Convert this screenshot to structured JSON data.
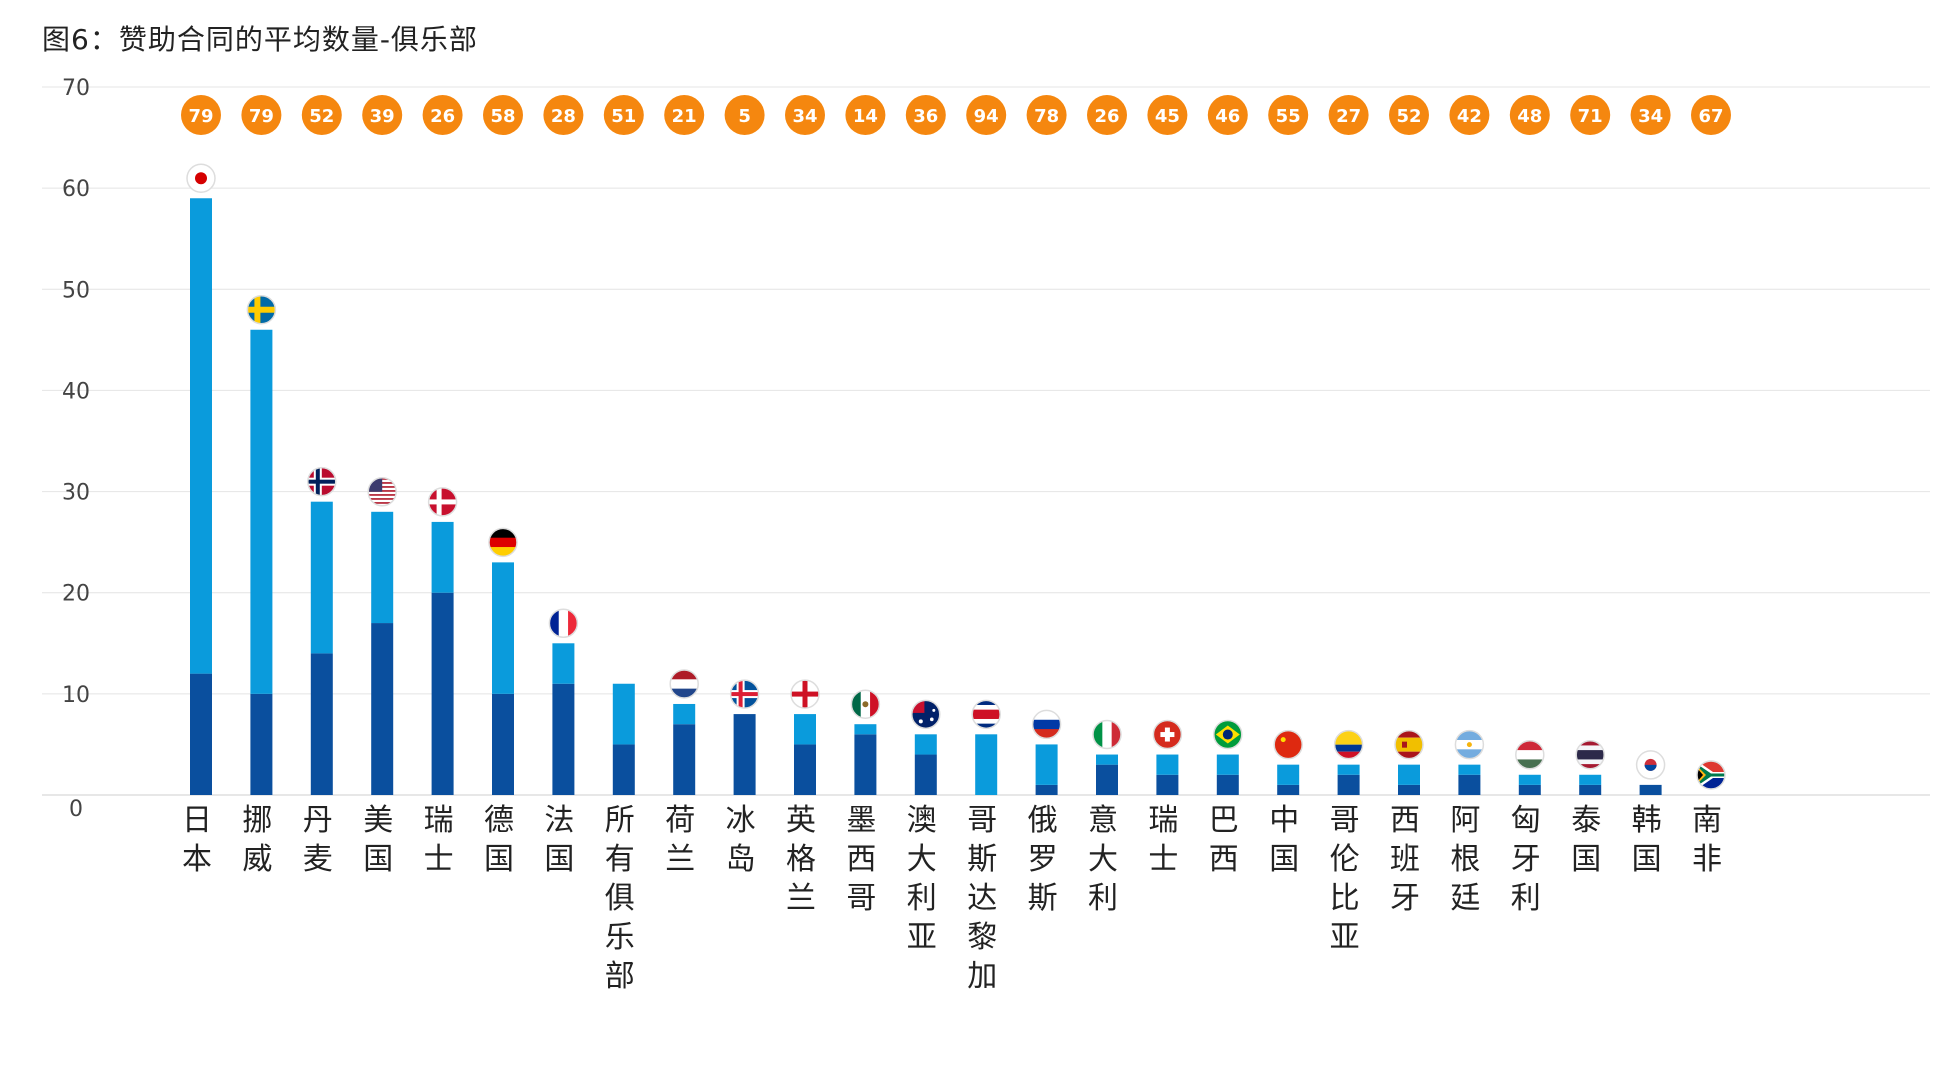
{
  "title": "图6：赞助合同的平均数量-俱乐部",
  "chart_data": {
    "type": "bar",
    "stacked": true,
    "title": "图6：赞助合同的平均数量-俱乐部",
    "xlabel": "",
    "ylabel": "",
    "ylim": [
      0,
      70
    ],
    "yticks": [
      0,
      10,
      20,
      30,
      40,
      50,
      60,
      70
    ],
    "grid": true,
    "categories": [
      "日本",
      "挪威",
      "丹麦",
      "美国",
      "瑞士",
      "德国",
      "法国",
      "所有俱乐部",
      "荷兰",
      "冰岛",
      "英格兰",
      "墨西哥",
      "澳大利亚",
      "哥斯达黎加",
      "俄罗斯",
      "意大利",
      "瑞士",
      "巴西",
      "中国",
      "哥伦比亚",
      "西班牙",
      "阿根廷",
      "匈牙利",
      "泰国",
      "韩国",
      "南非"
    ],
    "badges": [
      79,
      79,
      52,
      39,
      26,
      58,
      28,
      51,
      21,
      5,
      34,
      14,
      36,
      94,
      78,
      26,
      45,
      46,
      55,
      27,
      52,
      42,
      48,
      71,
      34,
      67
    ],
    "series": [
      {
        "values": [
          12,
          10,
          14,
          17,
          20,
          10,
          11,
          5,
          7,
          8,
          5,
          6,
          4,
          0,
          1,
          3,
          2,
          2,
          1,
          2,
          1,
          2,
          1,
          1,
          1,
          0
        ]
      },
      {
        "values": [
          47,
          36,
          15,
          11,
          7,
          13,
          4,
          6,
          2,
          0,
          3,
          1,
          2,
          6,
          4,
          1,
          2,
          2,
          2,
          1,
          2,
          1,
          1,
          1,
          0,
          0
        ]
      }
    ],
    "flags": [
      "japan",
      "sweden",
      "norway",
      "usa",
      "denmark",
      "germany",
      "france",
      "",
      "netherlands",
      "iceland",
      "england",
      "mexico",
      "australia",
      "costa-rica",
      "russia",
      "italy",
      "switzerland",
      "brazil",
      "china",
      "colombia",
      "spain",
      "argentina",
      "hungary",
      "thailand",
      "korea",
      "south-africa"
    ],
    "colors": {
      "dark": "#0a4f9e",
      "light": "#0a9bdc",
      "badge": "#f5870f",
      "grid": "#e4e4e4"
    }
  }
}
